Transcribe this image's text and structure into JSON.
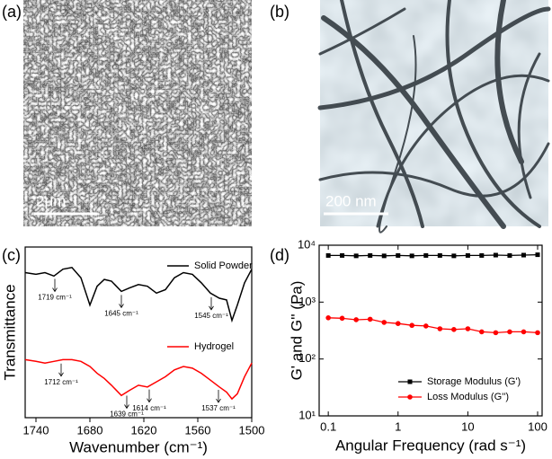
{
  "panel_labels": [
    "(a)",
    "(b)",
    "(c)",
    "(d)"
  ],
  "images": [
    {
      "scale_bar": "2μm"
    },
    {
      "scale_bar": "200 nm"
    }
  ],
  "chart_data": [
    {
      "type": "line",
      "xlabel": "Wavenumber (cm⁻¹)",
      "ylabel": "Transmittance",
      "xlim": [
        1752,
        1500
      ],
      "xticks": [
        1740,
        1680,
        1620,
        1560,
        1500
      ],
      "ylim": [
        0,
        100
      ],
      "x": [
        1752,
        1740,
        1730,
        1720,
        1710,
        1700,
        1690,
        1680,
        1672,
        1664,
        1656,
        1645,
        1636,
        1626,
        1616,
        1606,
        1596,
        1586,
        1576,
        1566,
        1556,
        1546,
        1536,
        1528,
        1522,
        1516,
        1508,
        1500
      ],
      "series": [
        {
          "name": "Solid Powder",
          "color": "#000000",
          "values": [
            85,
            84,
            85,
            83,
            87,
            88,
            82,
            66,
            77,
            81,
            80,
            74,
            76,
            78,
            77,
            73,
            75,
            82,
            85,
            84,
            79,
            73,
            70,
            69,
            57,
            66,
            79,
            87
          ],
          "annotations": [
            {
              "text": "1719 cm⁻¹",
              "x": 1719
            },
            {
              "text": "1645 cm⁻¹",
              "x": 1645
            },
            {
              "text": "1545 cm⁻¹",
              "x": 1545
            }
          ]
        },
        {
          "name": "Hydrogel",
          "color": "#ff0000",
          "values": [
            34,
            33,
            32,
            33,
            34,
            34,
            33,
            30,
            26,
            23,
            19,
            13,
            16,
            19,
            18,
            21,
            24,
            28,
            30,
            29,
            26,
            22,
            18,
            15,
            11,
            14,
            24,
            32
          ],
          "annotations": [
            {
              "text": "1712 cm⁻¹",
              "x": 1712
            },
            {
              "text": "1639 cm⁻¹",
              "x": 1639
            },
            {
              "text": "1614 cm⁻¹",
              "x": 1614
            },
            {
              "text": "1537 cm⁻¹",
              "x": 1537
            }
          ]
        }
      ]
    },
    {
      "type": "scatter-line",
      "xlabel": "Angular Frequency (rad s⁻¹)",
      "ylabel": "G' and G'' (Pa)",
      "xscale": "log",
      "yscale": "log",
      "xlim": [
        0.074,
        116
      ],
      "xticks": [
        0.1,
        1,
        10,
        100
      ],
      "ylim": [
        10,
        10000
      ],
      "yticks": [
        {
          "value": 10,
          "label": "10¹"
        },
        {
          "value": 100,
          "label": "10²"
        },
        {
          "value": 1000,
          "label": "10³"
        },
        {
          "value": 10000,
          "label": "10⁴"
        }
      ],
      "x": [
        0.1,
        0.158,
        0.251,
        0.398,
        0.631,
        1,
        1.58,
        2.51,
        3.98,
        6.31,
        10,
        15.8,
        25.1,
        39.8,
        63.1,
        100
      ],
      "series": [
        {
          "name": "Storage Modulus (G')",
          "color": "#000000",
          "marker": "square",
          "values": [
            6600,
            6600,
            6500,
            6600,
            6500,
            6600,
            6500,
            6600,
            6600,
            6500,
            6600,
            6600,
            6700,
            6600,
            6700,
            6800
          ]
        },
        {
          "name": "Loss Modulus (G'')",
          "color": "#ff0000",
          "marker": "circle",
          "values": [
            530,
            520,
            490,
            500,
            440,
            420,
            390,
            380,
            340,
            330,
            340,
            300,
            290,
            300,
            300,
            290
          ]
        }
      ]
    }
  ]
}
